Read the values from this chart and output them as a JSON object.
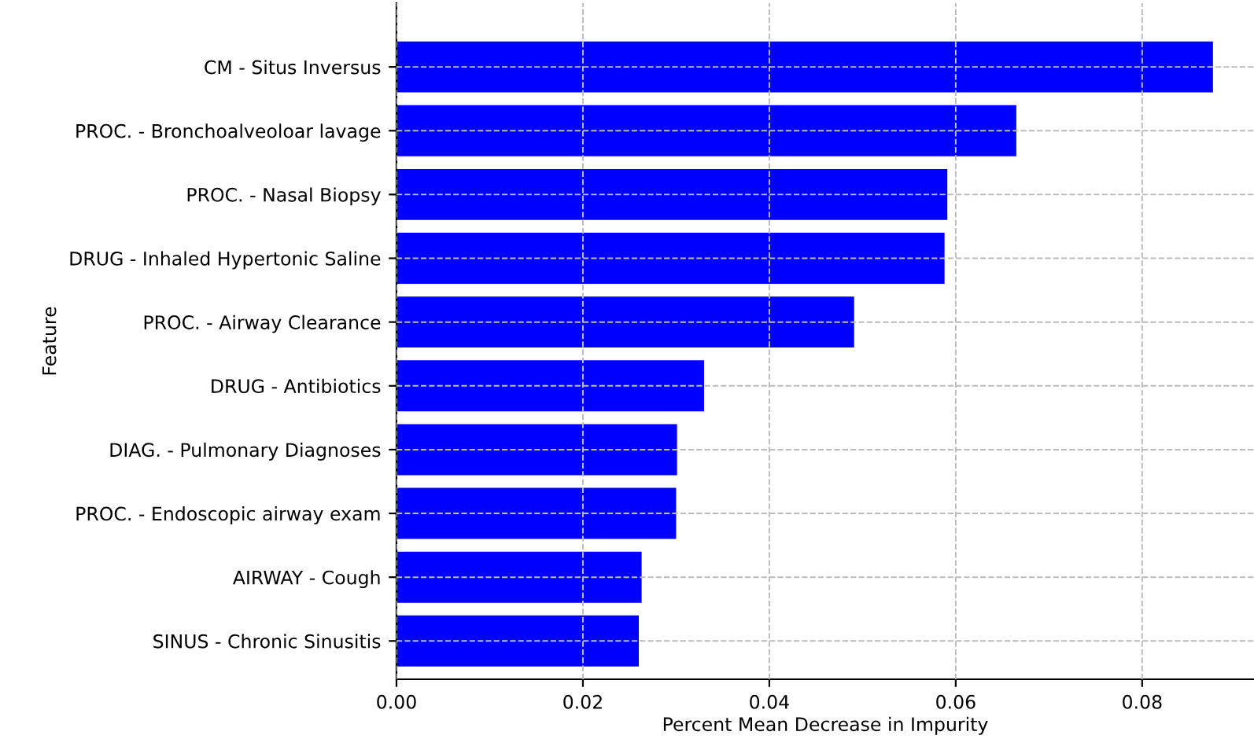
{
  "chart_data": {
    "type": "bar",
    "orientation": "horizontal",
    "xlabel": "Percent Mean Decrease in Impurity",
    "ylabel": "Feature",
    "categories": [
      "CM - Situs Inversus",
      "PROC. - Bronchoalveoloar lavage",
      "PROC. - Nasal Biopsy",
      "DRUG - Inhaled Hypertonic Saline",
      "PROC. - Airway Clearance",
      "DRUG - Antibiotics",
      "DIAG. - Pulmonary Diagnoses",
      "PROC. - Endoscopic airway exam",
      "AIRWAY - Cough",
      "SINUS - Chronic Sinusitis"
    ],
    "values": [
      0.0876,
      0.0665,
      0.0591,
      0.0588,
      0.0491,
      0.033,
      0.0301,
      0.03,
      0.0263,
      0.026
    ],
    "color": "#0000ff",
    "xlim": [
      0,
      0.092
    ],
    "xticks": [
      {
        "value": 0,
        "label": "0.00"
      },
      {
        "value": 0.02,
        "label": "0.02"
      },
      {
        "value": 0.04,
        "label": "0.04"
      },
      {
        "value": 0.06,
        "label": "0.06"
      },
      {
        "value": 0.08,
        "label": "0.08"
      }
    ],
    "grid": true,
    "line_style": "dashed"
  }
}
